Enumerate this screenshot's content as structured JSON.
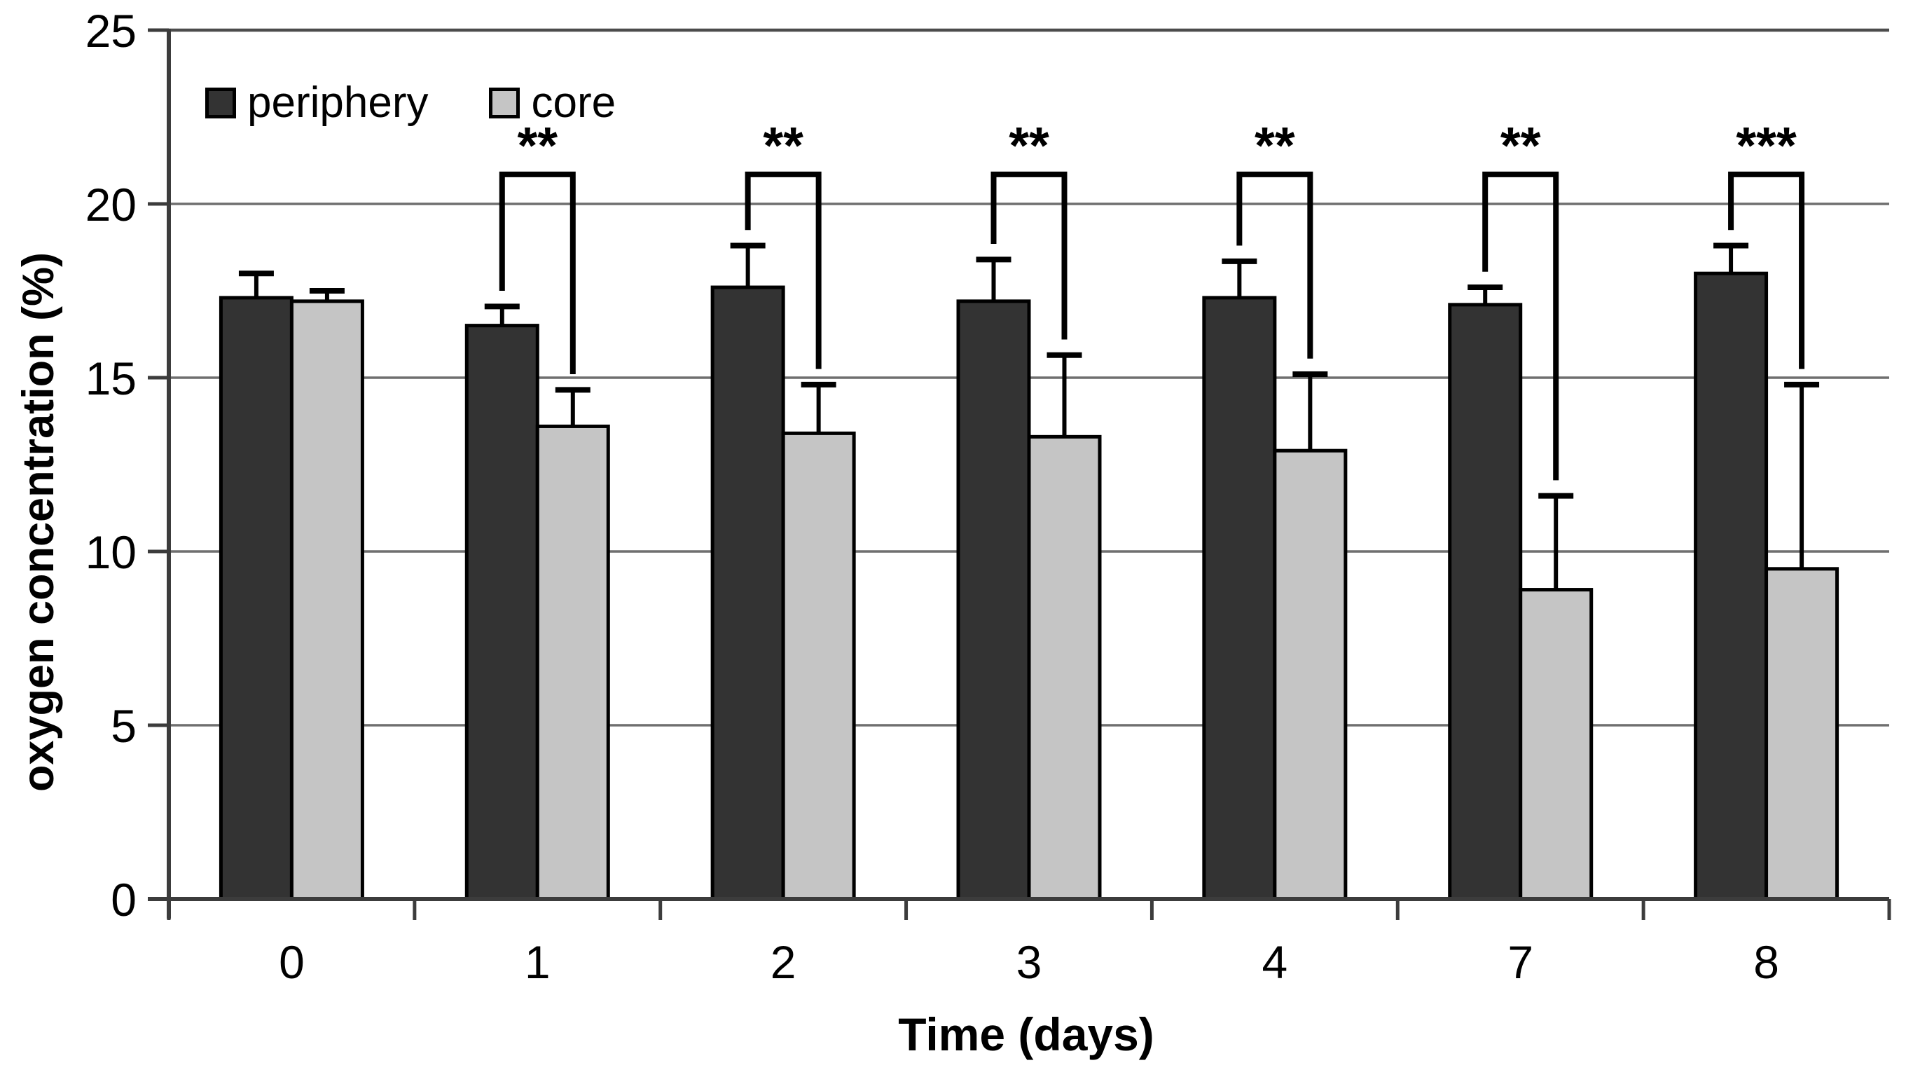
{
  "figure": {
    "background_color": "#ffffff",
    "grid_color": "#6f6f6f",
    "axis_color": "#3c3c3c",
    "bar_outline_color": "#000000"
  },
  "chart_data": {
    "type": "bar",
    "title": "",
    "xlabel": "Time (days)",
    "ylabel": "oxygen concentration (%)",
    "categories": [
      "0",
      "1",
      "2",
      "3",
      "4",
      "7",
      "8"
    ],
    "y_ticks": [
      0,
      5,
      10,
      15,
      20,
      25
    ],
    "ylim": [
      0,
      25
    ],
    "grid": true,
    "legend_position": "top-left-inside",
    "error_bars": "upper-only",
    "series": [
      {
        "name": "periphery",
        "color": "#333333",
        "values": [
          17.3,
          16.5,
          17.6,
          17.2,
          17.3,
          17.1,
          18.0
        ],
        "errors_up": [
          0.7,
          0.55,
          1.2,
          1.2,
          1.05,
          0.5,
          0.8
        ]
      },
      {
        "name": "core",
        "color": "#c5c5c5",
        "values": [
          17.2,
          13.6,
          13.4,
          13.3,
          12.9,
          8.9,
          9.5
        ],
        "errors_up": [
          0.3,
          1.05,
          1.4,
          2.35,
          2.2,
          2.7,
          5.3
        ]
      }
    ],
    "significance": [
      null,
      "**",
      "**",
      "**",
      "**",
      "**",
      "***"
    ],
    "sig_bracket_top": 20.85
  }
}
